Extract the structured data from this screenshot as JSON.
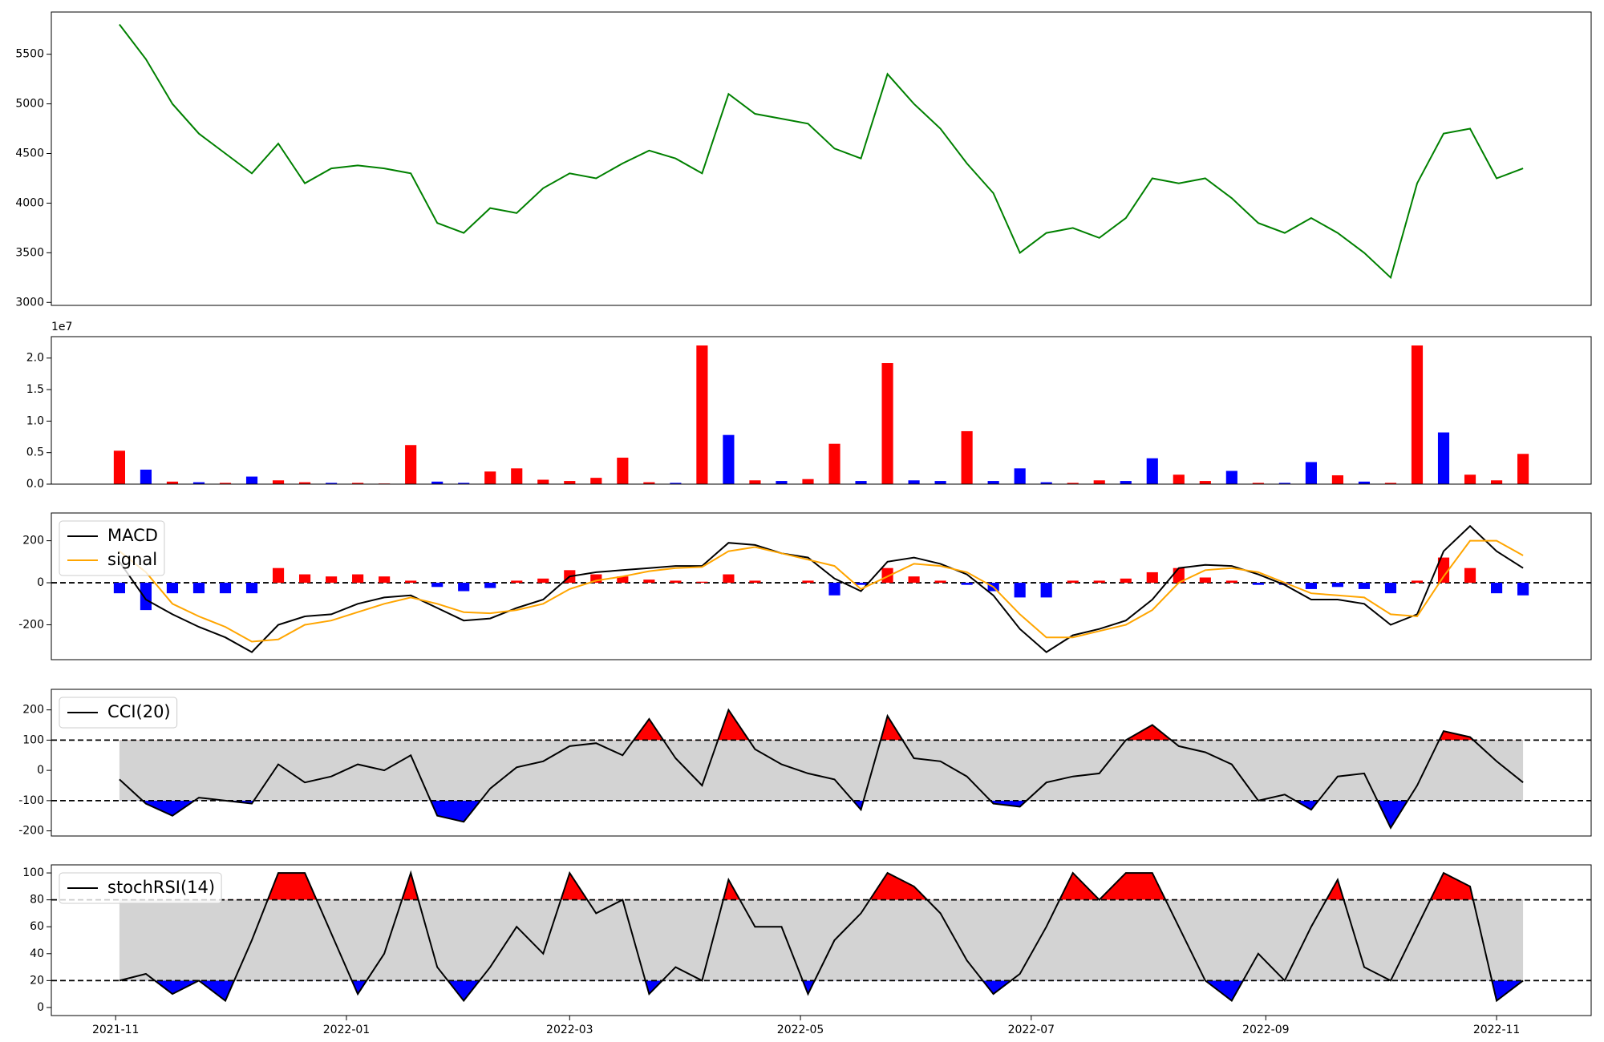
{
  "chart_data": [
    {
      "type": "line",
      "x": [
        "2021-11-02",
        "2021-11-09",
        "2021-11-16",
        "2021-11-23",
        "2021-11-30",
        "2021-12-07",
        "2021-12-14",
        "2021-12-21",
        "2021-12-28",
        "2022-01-04",
        "2022-01-11",
        "2022-01-18",
        "2022-01-25",
        "2022-02-01",
        "2022-02-08",
        "2022-02-15",
        "2022-02-22",
        "2022-03-01",
        "2022-03-08",
        "2022-03-15",
        "2022-03-22",
        "2022-03-29",
        "2022-04-05",
        "2022-04-12",
        "2022-04-19",
        "2022-04-26",
        "2022-05-03",
        "2022-05-10",
        "2022-05-17",
        "2022-05-24",
        "2022-05-31",
        "2022-06-07",
        "2022-06-14",
        "2022-06-21",
        "2022-06-28",
        "2022-07-05",
        "2022-07-12",
        "2022-07-19",
        "2022-07-26",
        "2022-08-02",
        "2022-08-09",
        "2022-08-16",
        "2022-08-23",
        "2022-08-30",
        "2022-09-06",
        "2022-09-13",
        "2022-09-20",
        "2022-09-27",
        "2022-10-04",
        "2022-10-11",
        "2022-10-18",
        "2022-10-25",
        "2022-11-01",
        "2022-11-08"
      ],
      "xlim": [
        "2021-10-15",
        "2022-11-26"
      ],
      "series": [
        {
          "color": "green",
          "values": [
            5800,
            5450,
            5000,
            4700,
            4500,
            4300,
            4600,
            4200,
            4350,
            4380,
            4350,
            4300,
            3800,
            3700,
            3950,
            3900,
            4150,
            4300,
            4250,
            4400,
            4530,
            4450,
            4300,
            5100,
            4900,
            4850,
            4800,
            4550,
            4450,
            5300,
            5000,
            4750,
            4400,
            4100,
            3500,
            3700,
            3750,
            3650,
            3850,
            4250,
            4200,
            4250,
            4050,
            3800,
            3700,
            3850,
            3700,
            3500,
            3250,
            4200,
            4700,
            4750,
            4250,
            4350
          ]
        }
      ],
      "ylim": [
        2970,
        5925
      ],
      "yticks": [
        3000,
        3500,
        4000,
        4500,
        5000,
        5500
      ]
    },
    {
      "type": "bar",
      "x": [
        "2021-11-02",
        "2021-11-09",
        "2021-11-16",
        "2021-11-23",
        "2021-11-30",
        "2021-12-07",
        "2021-12-14",
        "2021-12-21",
        "2021-12-28",
        "2022-01-04",
        "2022-01-11",
        "2022-01-18",
        "2022-01-25",
        "2022-02-01",
        "2022-02-08",
        "2022-02-15",
        "2022-02-22",
        "2022-03-01",
        "2022-03-08",
        "2022-03-15",
        "2022-03-22",
        "2022-03-29",
        "2022-04-05",
        "2022-04-12",
        "2022-04-19",
        "2022-04-26",
        "2022-05-03",
        "2022-05-10",
        "2022-05-17",
        "2022-05-24",
        "2022-05-31",
        "2022-06-07",
        "2022-06-14",
        "2022-06-21",
        "2022-06-28",
        "2022-07-05",
        "2022-07-12",
        "2022-07-19",
        "2022-07-26",
        "2022-08-02",
        "2022-08-09",
        "2022-08-16",
        "2022-08-23",
        "2022-08-30",
        "2022-09-06",
        "2022-09-13",
        "2022-09-20",
        "2022-09-27",
        "2022-10-04",
        "2022-10-11",
        "2022-10-18",
        "2022-10-25",
        "2022-11-01",
        "2022-11-08"
      ],
      "xlim": [
        "2021-10-15",
        "2022-11-26"
      ],
      "values": [
        5300000,
        2300000,
        400000,
        300000,
        200000,
        1200000,
        600000,
        300000,
        200000,
        200000,
        100000,
        6200000,
        400000,
        200000,
        2000000,
        2500000,
        700000,
        500000,
        1000000,
        4200000,
        300000,
        200000,
        22000000,
        7800000,
        600000,
        500000,
        800000,
        6400000,
        500000,
        19200000,
        600000,
        500000,
        8400000,
        500000,
        2500000,
        300000,
        200000,
        600000,
        500000,
        4100000,
        1500000,
        500000,
        2100000,
        200000,
        200000,
        3500000,
        1400000,
        400000,
        200000,
        22000000,
        8200000,
        1500000,
        600000,
        4800000
      ],
      "colors": [
        "red",
        "blue",
        "red",
        "blue",
        "red",
        "blue",
        "red",
        "red",
        "blue",
        "red",
        "red",
        "red",
        "blue",
        "blue",
        "red",
        "red",
        "red",
        "red",
        "red",
        "red",
        "red",
        "blue",
        "red",
        "blue",
        "red",
        "blue",
        "red",
        "red",
        "blue",
        "red",
        "blue",
        "blue",
        "red",
        "blue",
        "blue",
        "blue",
        "red",
        "red",
        "blue",
        "blue",
        "red",
        "red",
        "blue",
        "red",
        "blue",
        "blue",
        "red",
        "blue",
        "red",
        "red",
        "blue",
        "red",
        "red",
        "red"
      ],
      "ylim": [
        0,
        23400000
      ],
      "yticks": [
        {
          "value": 0,
          "label": "0.0"
        },
        {
          "value": 5000000,
          "label": "0.5"
        },
        {
          "value": 10000000,
          "label": "1.0"
        },
        {
          "value": 15000000,
          "label": "1.5"
        },
        {
          "value": 20000000,
          "label": "2.0"
        }
      ],
      "offset_label": "1e7"
    },
    {
      "type": "line",
      "x": [
        "2021-11-02",
        "2021-11-09",
        "2021-11-16",
        "2021-11-23",
        "2021-11-30",
        "2021-12-07",
        "2021-12-14",
        "2021-12-21",
        "2021-12-28",
        "2022-01-04",
        "2022-01-11",
        "2022-01-18",
        "2022-01-25",
        "2022-02-01",
        "2022-02-08",
        "2022-02-15",
        "2022-02-22",
        "2022-03-01",
        "2022-03-08",
        "2022-03-15",
        "2022-03-22",
        "2022-03-29",
        "2022-04-05",
        "2022-04-12",
        "2022-04-19",
        "2022-04-26",
        "2022-05-03",
        "2022-05-10",
        "2022-05-17",
        "2022-05-24",
        "2022-05-31",
        "2022-06-07",
        "2022-06-14",
        "2022-06-21",
        "2022-06-28",
        "2022-07-05",
        "2022-07-12",
        "2022-07-19",
        "2022-07-26",
        "2022-08-02",
        "2022-08-09",
        "2022-08-16",
        "2022-08-23",
        "2022-08-30",
        "2022-09-06",
        "2022-09-13",
        "2022-09-20",
        "2022-09-27",
        "2022-10-04",
        "2022-10-11",
        "2022-10-18",
        "2022-10-25",
        "2022-11-01",
        "2022-11-08"
      ],
      "xlim": [
        "2021-10-15",
        "2022-11-26"
      ],
      "histogram": {
        "positive_color": "red",
        "negative_color": "blue",
        "values": [
          -50,
          -130,
          -50,
          -50,
          -50,
          -50,
          70,
          40,
          30,
          40,
          30,
          10,
          -20,
          -40,
          -25,
          10,
          20,
          60,
          40,
          30,
          15,
          10,
          5,
          40,
          10,
          0,
          10,
          -60,
          -10,
          70,
          30,
          10,
          -10,
          -40,
          -70,
          -70,
          10,
          10,
          20,
          50,
          70,
          25,
          10,
          -10,
          -10,
          -30,
          -20,
          -30,
          -50,
          10,
          120,
          70,
          -50,
          -60
        ]
      },
      "series": [
        {
          "name": "MACD",
          "color": "black",
          "values": [
            100,
            -80,
            -150,
            -210,
            -260,
            -330,
            -200,
            -160,
            -150,
            -100,
            -70,
            -60,
            -120,
            -180,
            -170,
            -120,
            -80,
            30,
            50,
            60,
            70,
            80,
            80,
            190,
            180,
            140,
            120,
            20,
            -40,
            100,
            120,
            90,
            40,
            -60,
            -220,
            -330,
            -250,
            -220,
            -180,
            -80,
            70,
            85,
            80,
            40,
            -10,
            -80,
            -80,
            -100,
            -200,
            -150,
            150,
            270,
            150,
            70
          ]
        },
        {
          "name": "signal",
          "color": "orange",
          "values": [
            150,
            50,
            -100,
            -160,
            -210,
            -280,
            -270,
            -200,
            -180,
            -140,
            -100,
            -70,
            -100,
            -140,
            -145,
            -130,
            -100,
            -30,
            10,
            30,
            55,
            70,
            75,
            150,
            170,
            140,
            110,
            80,
            -30,
            30,
            90,
            80,
            50,
            -20,
            -150,
            -260,
            -260,
            -230,
            -200,
            -130,
            0,
            60,
            70,
            50,
            0,
            -50,
            -60,
            -70,
            -150,
            -160,
            30,
            200,
            200,
            130
          ]
        }
      ],
      "hlines": [
        0
      ],
      "legend": "upper left",
      "ylim": [
        -366,
        332
      ],
      "yticks": [
        -200,
        0,
        200
      ]
    },
    {
      "type": "band",
      "x": [
        "2021-11-02",
        "2021-11-09",
        "2021-11-16",
        "2021-11-23",
        "2021-11-30",
        "2021-12-07",
        "2021-12-14",
        "2021-12-21",
        "2021-12-28",
        "2022-01-04",
        "2022-01-11",
        "2022-01-18",
        "2022-01-25",
        "2022-02-01",
        "2022-02-08",
        "2022-02-15",
        "2022-02-22",
        "2022-03-01",
        "2022-03-08",
        "2022-03-15",
        "2022-03-22",
        "2022-03-29",
        "2022-04-05",
        "2022-04-12",
        "2022-04-19",
        "2022-04-26",
        "2022-05-03",
        "2022-05-10",
        "2022-05-17",
        "2022-05-24",
        "2022-05-31",
        "2022-06-07",
        "2022-06-14",
        "2022-06-21",
        "2022-06-28",
        "2022-07-05",
        "2022-07-12",
        "2022-07-19",
        "2022-07-26",
        "2022-08-02",
        "2022-08-09",
        "2022-08-16",
        "2022-08-23",
        "2022-08-30",
        "2022-09-06",
        "2022-09-13",
        "2022-09-20",
        "2022-09-27",
        "2022-10-04",
        "2022-10-11",
        "2022-10-18",
        "2022-10-25",
        "2022-11-01",
        "2022-11-08"
      ],
      "xlim": [
        "2021-10-15",
        "2022-11-26"
      ],
      "series": [
        {
          "name": "CCI(20)",
          "color": "black",
          "values": [
            -30,
            -110,
            -150,
            -90,
            -100,
            -110,
            20,
            -40,
            -20,
            20,
            0,
            50,
            -150,
            -170,
            -60,
            10,
            30,
            80,
            90,
            50,
            170,
            40,
            -50,
            200,
            70,
            20,
            -10,
            -30,
            -130,
            180,
            40,
            30,
            -20,
            -110,
            -120,
            -40,
            -20,
            -10,
            100,
            150,
            80,
            60,
            20,
            -100,
            -80,
            -130,
            -20,
            -10,
            -190,
            -50,
            130,
            110,
            30,
            -40
          ]
        }
      ],
      "bands": [
        -100,
        100
      ],
      "band_color": "lightgray",
      "upper_color": "red",
      "lower_color": "blue",
      "legend": "upper left",
      "ylim": [
        -217,
        268
      ],
      "yticks": [
        -200,
        -100,
        0,
        100,
        200
      ]
    },
    {
      "type": "band",
      "x": [
        "2021-11-02",
        "2021-11-09",
        "2021-11-16",
        "2021-11-23",
        "2021-11-30",
        "2021-12-07",
        "2021-12-14",
        "2021-12-21",
        "2021-12-28",
        "2022-01-04",
        "2022-01-11",
        "2022-01-18",
        "2022-01-25",
        "2022-02-01",
        "2022-02-08",
        "2022-02-15",
        "2022-02-22",
        "2022-03-01",
        "2022-03-08",
        "2022-03-15",
        "2022-03-22",
        "2022-03-29",
        "2022-04-05",
        "2022-04-12",
        "2022-04-19",
        "2022-04-26",
        "2022-05-03",
        "2022-05-10",
        "2022-05-17",
        "2022-05-24",
        "2022-05-31",
        "2022-06-07",
        "2022-06-14",
        "2022-06-21",
        "2022-06-28",
        "2022-07-05",
        "2022-07-12",
        "2022-07-19",
        "2022-07-26",
        "2022-08-02",
        "2022-08-09",
        "2022-08-16",
        "2022-08-23",
        "2022-08-30",
        "2022-09-06",
        "2022-09-13",
        "2022-09-20",
        "2022-09-27",
        "2022-10-04",
        "2022-10-11",
        "2022-10-18",
        "2022-10-25",
        "2022-11-01",
        "2022-11-08"
      ],
      "xlim": [
        "2021-10-15",
        "2022-11-26"
      ],
      "series": [
        {
          "name": "stochRSI(14)",
          "color": "black",
          "values": [
            20,
            25,
            10,
            20,
            5,
            50,
            100,
            100,
            55,
            10,
            40,
            100,
            30,
            5,
            30,
            60,
            40,
            100,
            70,
            80,
            10,
            30,
            20,
            95,
            60,
            60,
            10,
            50,
            70,
            100,
            90,
            70,
            35,
            10,
            25,
            60,
            100,
            80,
            100,
            100,
            60,
            20,
            5,
            40,
            20,
            60,
            95,
            30,
            20,
            60,
            100,
            90,
            5,
            20
          ]
        }
      ],
      "bands": [
        20,
        80
      ],
      "band_color": "lightgray",
      "upper_color": "red",
      "lower_color": "blue",
      "legend": "upper left",
      "ylim": [
        -6,
        106
      ],
      "yticks": [
        0,
        20,
        40,
        60,
        80,
        100
      ],
      "xticks": [
        {
          "value": "2021-11-01",
          "label": "2021-11"
        },
        {
          "value": "2022-01-01",
          "label": "2022-01"
        },
        {
          "value": "2022-03-01",
          "label": "2022-03"
        },
        {
          "value": "2022-05-01",
          "label": "2022-05"
        },
        {
          "value": "2022-07-01",
          "label": "2022-07"
        },
        {
          "value": "2022-09-01",
          "label": "2022-09"
        },
        {
          "value": "2022-11-01",
          "label": "2022-11"
        }
      ]
    }
  ]
}
